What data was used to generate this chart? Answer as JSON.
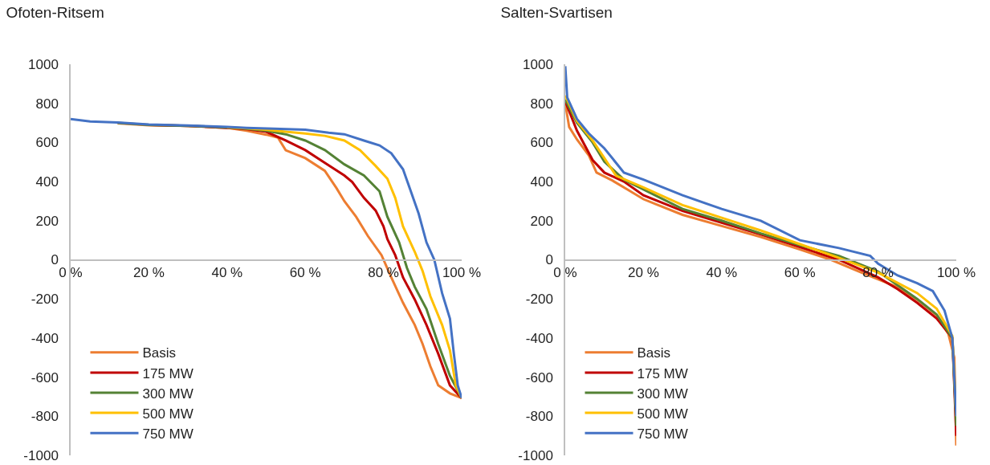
{
  "chart_data": [
    {
      "type": "line",
      "title": "Ofoten-Ritsem",
      "xlim": [
        0,
        100
      ],
      "xticks": [
        {
          "value": 0,
          "label": "0 %"
        },
        {
          "value": 20,
          "label": "20 %"
        },
        {
          "value": 40,
          "label": "40 %"
        },
        {
          "value": 60,
          "label": "60 %"
        },
        {
          "value": 80,
          "label": "80 %"
        },
        {
          "value": 100,
          "label": "100 %"
        }
      ],
      "ylim": [
        -1000,
        1000
      ],
      "yticks": [
        -1000,
        -800,
        -600,
        -400,
        -200,
        0,
        200,
        400,
        600,
        800,
        1000
      ],
      "legend": "bottom left",
      "series": [
        {
          "name": "Basis",
          "color": "#ed7d31",
          "x": [
            12,
            20,
            30,
            40,
            45,
            50,
            53,
            55,
            60,
            65,
            68,
            70,
            73,
            76,
            79.5,
            82,
            85,
            88,
            90,
            92,
            94,
            97,
            100
          ],
          "values": [
            698,
            688,
            685,
            675,
            660,
            640,
            625,
            560,
            520,
            455,
            366,
            300,
            220,
            122,
            24,
            -90,
            -220,
            -333,
            -430,
            -545,
            -642,
            -683,
            -707
          ]
        },
        {
          "name": "175 MW",
          "color": "#c00000",
          "x": [
            20,
            30,
            40,
            45,
            50,
            55,
            60,
            65,
            70,
            72,
            75,
            78,
            80,
            81,
            83,
            85,
            88,
            91,
            94,
            97,
            100
          ],
          "values": [
            690,
            685,
            675,
            668,
            655,
            610,
            561,
            496,
            431,
            398,
            317,
            252,
            171,
            106,
            24,
            -90,
            -203,
            -333,
            -480,
            -642,
            -707
          ]
        },
        {
          "name": "300 MW",
          "color": "#548235",
          "x": [
            12,
            20,
            30,
            40,
            45,
            50,
            55,
            60,
            65,
            70,
            75,
            79,
            81,
            84,
            86,
            88,
            91,
            94,
            97,
            100
          ],
          "values": [
            700,
            690,
            685,
            677,
            670,
            660,
            642,
            610,
            561,
            488,
            431,
            350,
            220,
            89,
            -41,
            -138,
            -252,
            -430,
            -593,
            -707
          ]
        },
        {
          "name": "500 MW",
          "color": "#ffc000",
          "x": [
            40,
            45,
            50,
            55,
            60,
            65,
            70,
            74,
            78,
            81,
            83,
            85,
            88,
            90,
            92,
            95,
            97,
            98.5,
            100
          ],
          "values": [
            678,
            672,
            665,
            655,
            646,
            634,
            610,
            561,
            480,
            415,
            317,
            171,
            41,
            -57,
            -187,
            -333,
            -463,
            -642,
            -707
          ]
        },
        {
          "name": "750 MW",
          "color": "#4472c4",
          "x": [
            0,
            5,
            12,
            20,
            30,
            40,
            45,
            52,
            60,
            66,
            70,
            75,
            79,
            82,
            85,
            87,
            89,
            91,
            93,
            95,
            97,
            98,
            99,
            100
          ],
          "values": [
            720,
            707,
            702,
            692,
            687,
            680,
            675,
            670,
            665,
            650,
            642,
            610,
            585,
            545,
            463,
            350,
            236,
            89,
            0,
            -171,
            -301,
            -480,
            -642,
            -707
          ]
        }
      ]
    },
    {
      "type": "line",
      "title": "Salten-Svartisen",
      "xlim": [
        0,
        100
      ],
      "xticks": [
        {
          "value": 0,
          "label": "0 %"
        },
        {
          "value": 20,
          "label": "20 %"
        },
        {
          "value": 40,
          "label": "40 %"
        },
        {
          "value": 60,
          "label": "60 %"
        },
        {
          "value": 80,
          "label": "80 %"
        },
        {
          "value": 100,
          "label": "100 %"
        }
      ],
      "ylim": [
        -1000,
        1000
      ],
      "yticks": [
        -1000,
        -800,
        -600,
        -400,
        -200,
        0,
        200,
        400,
        600,
        800,
        1000
      ],
      "legend": "bottom left",
      "series": [
        {
          "name": "Basis",
          "color": "#ed7d31",
          "x": [
            0,
            1,
            3,
            6,
            8,
            12,
            16,
            20,
            30,
            40,
            50,
            60,
            68,
            75,
            85,
            90,
            95,
            98,
            99.5,
            100
          ],
          "values": [
            800,
            679,
            615,
            535,
            446,
            406,
            358,
            310,
            230,
            173,
            117,
            53,
            0,
            -59,
            -140,
            -204,
            -284,
            -380,
            -500,
            -950
          ]
        },
        {
          "name": "175 MW",
          "color": "#c00000",
          "x": [
            0,
            3,
            7,
            10,
            15,
            20,
            25,
            30,
            40,
            50,
            60,
            70,
            80,
            85,
            90,
            95,
            99,
            100
          ],
          "values": [
            810,
            660,
            510,
            446,
            400,
            330,
            290,
            250,
            190,
            130,
            65,
            0,
            -90,
            -150,
            -220,
            -300,
            -400,
            -900
          ]
        },
        {
          "name": "300 MW",
          "color": "#548235",
          "x": [
            0,
            3,
            7,
            10,
            15,
            20,
            30,
            40,
            50,
            60,
            70,
            80,
            90,
            95,
            99,
            100
          ],
          "values": [
            820,
            700,
            600,
            502,
            410,
            360,
            260,
            200,
            135,
            75,
            20,
            -60,
            -200,
            -280,
            -400,
            -850
          ]
        },
        {
          "name": "500 MW",
          "color": "#ffc000",
          "x": [
            0,
            3,
            7,
            10,
            13,
            20,
            30,
            40,
            50,
            60,
            70,
            80,
            90,
            95,
            99,
            100
          ],
          "values": [
            840,
            710,
            610,
            520,
            430,
            370,
            280,
            215,
            150,
            80,
            10,
            -65,
            -170,
            -250,
            -390,
            -800
          ]
        },
        {
          "name": "750 MW",
          "color": "#4472c4",
          "x": [
            0,
            0.5,
            3,
            6,
            10,
            15,
            20,
            25,
            30,
            40,
            50,
            60,
            70,
            78,
            80,
            85,
            90,
            94,
            97,
            99,
            100
          ],
          "values": [
            990,
            830,
            720,
            647,
            570,
            446,
            410,
            370,
            330,
            260,
            200,
            100,
            60,
            20,
            -20,
            -80,
            -120,
            -160,
            -260,
            -400,
            -800
          ]
        }
      ]
    }
  ]
}
